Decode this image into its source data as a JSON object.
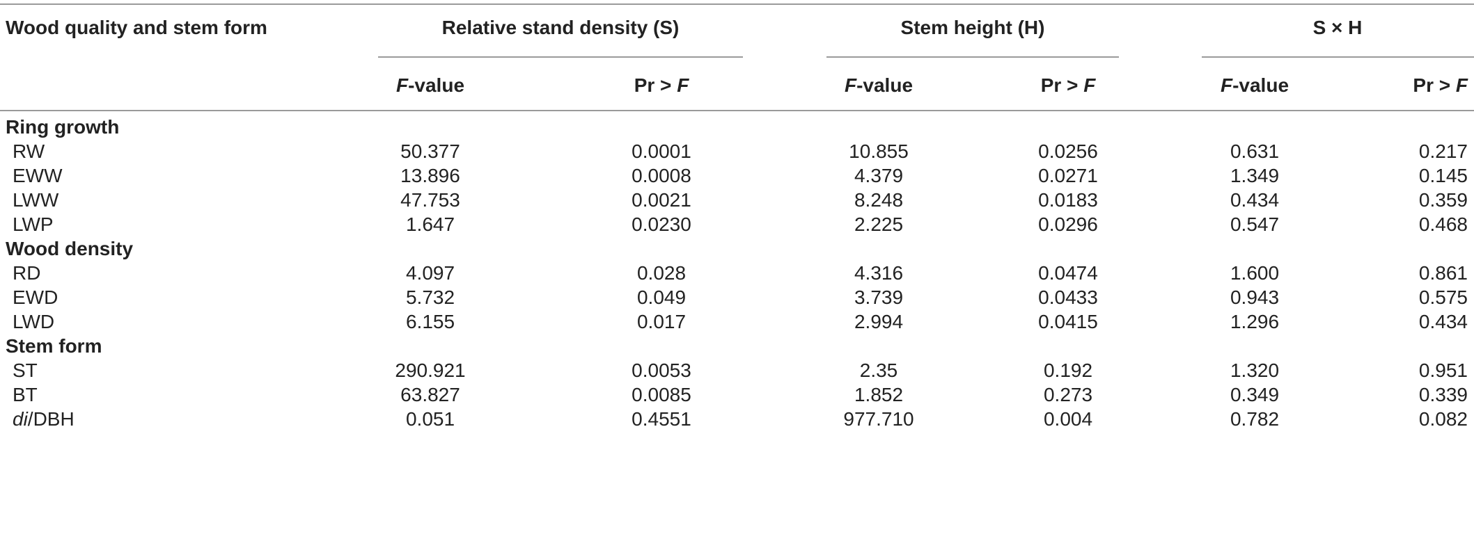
{
  "header": {
    "row_label": "Wood quality and stem form",
    "groups": [
      "Relative stand density (S)",
      "Stem height (H)",
      "S × H"
    ],
    "f_italic": "F",
    "f_suffix": "-value",
    "pr_prefix": "Pr > ",
    "pr_italic": "F"
  },
  "sections": [
    {
      "title": "Ring growth",
      "rows": [
        {
          "label": "RW",
          "values": [
            "50.377",
            "0.0001",
            "10.855",
            "0.0256",
            "0.631",
            "0.217"
          ]
        },
        {
          "label": "EWW",
          "values": [
            "13.896",
            "0.0008",
            "4.379",
            "0.0271",
            "1.349",
            "0.145"
          ]
        },
        {
          "label": "LWW",
          "values": [
            "47.753",
            "0.0021",
            "8.248",
            "0.0183",
            "0.434",
            "0.359"
          ]
        },
        {
          "label": "LWP",
          "values": [
            "1.647",
            "0.0230",
            "2.225",
            "0.0296",
            "0.547",
            "0.468"
          ]
        }
      ]
    },
    {
      "title": "Wood density",
      "rows": [
        {
          "label": "RD",
          "values": [
            "4.097",
            "0.028",
            "4.316",
            "0.0474",
            "1.600",
            "0.861"
          ]
        },
        {
          "label": "EWD",
          "values": [
            "5.732",
            "0.049",
            "3.739",
            "0.0433",
            "0.943",
            "0.575"
          ]
        },
        {
          "label": "LWD",
          "values": [
            "6.155",
            "0.017",
            "2.994",
            "0.0415",
            "1.296",
            "0.434"
          ]
        }
      ]
    },
    {
      "title": "Stem form",
      "rows": [
        {
          "label": "ST",
          "values": [
            "290.921",
            "0.0053",
            "2.35",
            "0.192",
            "1.320",
            "0.951"
          ]
        },
        {
          "label": "BT",
          "values": [
            "63.827",
            "0.0085",
            "1.852",
            "0.273",
            "0.349",
            "0.339"
          ]
        },
        {
          "label_italic": "di",
          "label_suffix": "/DBH",
          "values": [
            "0.051",
            "0.4551",
            "977.710",
            "0.004",
            "0.782",
            "0.082"
          ]
        }
      ]
    }
  ]
}
